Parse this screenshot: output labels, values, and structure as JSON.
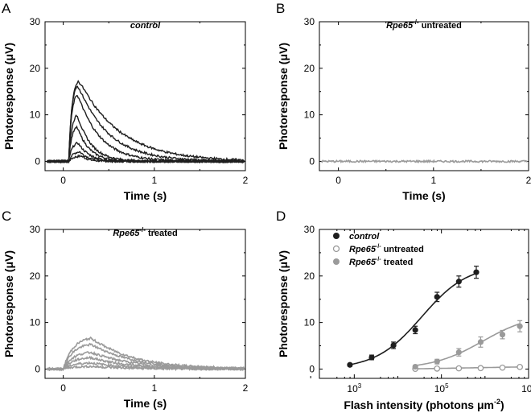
{
  "chart_data": [
    {
      "panel": "A",
      "type": "line",
      "title": "control",
      "xlabel": "Time (s)",
      "ylabel": "Photoresponse (μV)",
      "xlim": [
        -0.2,
        2
      ],
      "ylim": [
        -2,
        30
      ],
      "xticks": [
        "0",
        "1",
        "2"
      ],
      "yticks": [
        "0",
        "10",
        "20",
        "30"
      ],
      "color": "#1e1e1e",
      "flash_time": 0.06,
      "series": [
        {
          "name": "trace-1",
          "peak": 1.2,
          "t_peak": 0.14,
          "decay": 0.08
        },
        {
          "name": "trace-2",
          "peak": 2.2,
          "t_peak": 0.12,
          "decay": 0.1
        },
        {
          "name": "trace-3",
          "peak": 4.2,
          "t_peak": 0.1,
          "decay": 0.12
        },
        {
          "name": "trace-4",
          "peak": 7.8,
          "t_peak": 0.09,
          "decay": 0.13
        },
        {
          "name": "trace-5",
          "peak": 10.5,
          "t_peak": 0.09,
          "decay": 0.15
        },
        {
          "name": "trace-6",
          "peak": 15.2,
          "t_peak": 0.09,
          "decay": 0.24
        },
        {
          "name": "trace-7",
          "peak": 17.2,
          "t_peak": 0.09,
          "decay": 0.33
        },
        {
          "name": "trace-8",
          "peak": 18.2,
          "t_peak": 0.1,
          "decay": 0.44
        }
      ]
    },
    {
      "panel": "B",
      "type": "line",
      "title_main": "Rpe65",
      "title_sup": "-/-",
      "title_rest": " untreated",
      "xlabel": "Time (s)",
      "ylabel": "Photoresponse (μV)",
      "xlim": [
        -0.2,
        2
      ],
      "ylim": [
        -2,
        30
      ],
      "xticks": [
        "0",
        "1",
        "2"
      ],
      "yticks": [
        "0",
        "10",
        "20",
        "30"
      ],
      "color": "#9a9a9a",
      "series": [
        {
          "name": "flat-trace",
          "peak": 0,
          "t_peak": 0.3,
          "decay": 0.3
        }
      ]
    },
    {
      "panel": "C",
      "type": "line",
      "title_main": "Rpe65",
      "title_sup": "-/-",
      "title_rest": " treated",
      "xlabel": "Time (s)",
      "ylabel": "Photoresponse (μV)",
      "xlim": [
        -0.2,
        2
      ],
      "ylim": [
        -2,
        30
      ],
      "xticks": [
        "0",
        "1",
        "2"
      ],
      "yticks": [
        "0",
        "10",
        "20",
        "30"
      ],
      "color": "#9a9a9a",
      "flash_time": 0.0,
      "series": [
        {
          "name": "trace-1",
          "peak": 0.6,
          "t_peak": 0.3,
          "decay": 0.4
        },
        {
          "name": "trace-2",
          "peak": 1.4,
          "t_peak": 0.3,
          "decay": 0.4
        },
        {
          "name": "trace-3",
          "peak": 2.6,
          "t_peak": 0.3,
          "decay": 0.4
        },
        {
          "name": "trace-4",
          "peak": 3.8,
          "t_peak": 0.3,
          "decay": 0.45
        },
        {
          "name": "trace-5",
          "peak": 5.6,
          "t_peak": 0.3,
          "decay": 0.45
        },
        {
          "name": "trace-6",
          "peak": 7.0,
          "t_peak": 0.3,
          "decay": 0.45
        }
      ]
    },
    {
      "panel": "D",
      "type": "scatter",
      "xlabel_main": "Flash intensity (photons μm",
      "xlabel_sup": "-2",
      "xlabel_end": ")",
      "ylabel": "Photoresponse (μV)",
      "xscale": "log",
      "xlim_log10": [
        2.2,
        7.0
      ],
      "ylim": [
        -2,
        30
      ],
      "xticks": [
        {
          "base": "10",
          "exp": "3",
          "log": 3
        },
        {
          "base": "10",
          "exp": "5",
          "log": 5
        },
        {
          "base": "10",
          "exp": "7",
          "log": 7
        }
      ],
      "yticks": [
        "0",
        "10",
        "20",
        "30"
      ],
      "legend_position": "top-left",
      "series": [
        {
          "name": "control",
          "label_main": "control",
          "label_sup": "",
          "label_rest": "",
          "italic": true,
          "marker": "filled",
          "color": "#1e1e1e",
          "x_log10": [
            2.9,
            3.4,
            3.9,
            4.4,
            4.9,
            5.4,
            5.8
          ],
          "y": [
            0.9,
            2.5,
            5.1,
            8.4,
            15.5,
            18.8,
            20.8
          ],
          "err": [
            0.3,
            0.5,
            0.7,
            0.8,
            1.0,
            1.2,
            1.3
          ],
          "fit": {
            "type": "hill",
            "ymax": 22.5,
            "logx50": 4.55,
            "n": 0.82
          }
        },
        {
          "name": "untreated",
          "label_main": "Rpe65",
          "label_sup": "-/-",
          "label_rest": " untreated",
          "italic": false,
          "marker": "open",
          "color": "#9a9a9a",
          "x_log10": [
            4.4,
            4.9,
            5.4,
            5.9,
            6.4,
            6.8
          ],
          "y": [
            0.05,
            0.1,
            0.15,
            0.2,
            0.3,
            0.45
          ],
          "err": [
            0,
            0,
            0,
            0,
            0,
            0
          ],
          "fit": {
            "type": "linear"
          }
        },
        {
          "name": "treated",
          "label_main": "Rpe65",
          "label_sup": "-/-",
          "label_rest": " treated",
          "italic": false,
          "marker": "filled",
          "color": "#9a9a9a",
          "x_log10": [
            4.4,
            4.9,
            5.4,
            5.9,
            6.4,
            6.8
          ],
          "y": [
            0.5,
            1.6,
            3.6,
            5.8,
            7.4,
            9.2
          ],
          "err": [
            0.3,
            0.5,
            0.8,
            1.1,
            0.9,
            1.2
          ],
          "fit": {
            "type": "hill",
            "ymax": 12.0,
            "logx50": 5.95,
            "n": 0.75
          }
        }
      ]
    }
  ]
}
